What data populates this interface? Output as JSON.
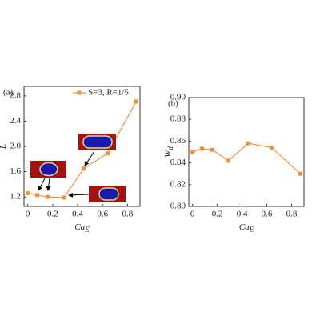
{
  "chart_data": [
    {
      "type": "line",
      "panel_label": "(a)",
      "y_label": "L",
      "x_label": "Ca",
      "x_label_sub": "E",
      "x": [
        0,
        0.076,
        0.16,
        0.29,
        0.45,
        0.64,
        0.87
      ],
      "series": [
        {
          "name": "S=3, R=1/5",
          "color": "#f0923a",
          "values": [
            1.26,
            1.23,
            1.2,
            1.19,
            1.65,
            1.89,
            2.71
          ]
        }
      ],
      "xlim": [
        -0.03,
        0.9
      ],
      "xticks": [
        0,
        0.2,
        0.4,
        0.6,
        0.8
      ],
      "ylim": [
        1.05,
        2.95
      ],
      "yticks": [
        1.2,
        1.6,
        {
          "value": 2,
          "label": "2.0"
        },
        2.4,
        2.8
      ]
    },
    {
      "type": "line",
      "panel_label": "(b)",
      "y_label": "W",
      "y_label_sub": "d",
      "x_label": "Ca",
      "x_label_sub": "E",
      "x": [
        0,
        0.076,
        0.16,
        0.29,
        0.45,
        0.64,
        0.87
      ],
      "series": [
        {
          "color": "#f0923a",
          "values": [
            0.85,
            0.853,
            0.852,
            0.842,
            0.858,
            0.854,
            0.83
          ]
        }
      ],
      "xlim": [
        -0.03,
        0.9
      ],
      "xticks": [
        0,
        0.2,
        0.4,
        0.6,
        0.8
      ],
      "ylim": [
        0.8,
        0.9
      ],
      "yticks": [
        {
          "value": 0.8,
          "label": "0.80"
        },
        {
          "value": 0.82,
          "label": "0.82"
        },
        {
          "value": 0.84,
          "label": "0.84"
        },
        {
          "value": 0.86,
          "label": "0.86"
        },
        {
          "value": 0.88,
          "label": "0.88"
        },
        {
          "value": 0.9,
          "label": "0.90"
        }
      ]
    }
  ]
}
